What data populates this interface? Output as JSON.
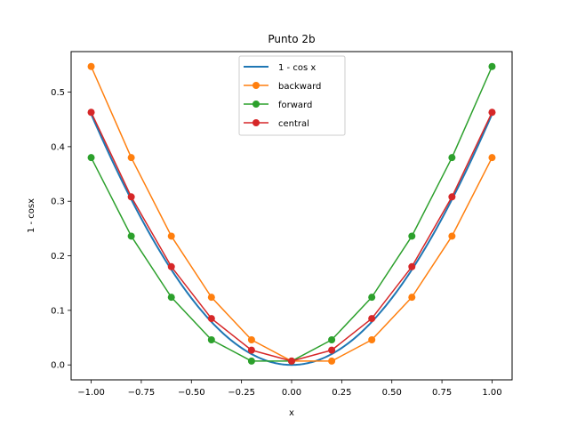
{
  "chart_data": {
    "type": "line",
    "title": "Punto 2b",
    "xlabel": "x",
    "ylabel": "1 - cosx",
    "xlim": [
      -1.1,
      1.1
    ],
    "ylim": [
      -0.0274,
      0.5743
    ],
    "xticks": [
      -1.0,
      -0.75,
      -0.5,
      -0.25,
      0.0,
      0.25,
      0.5,
      0.75,
      1.0
    ],
    "xtick_labels": [
      "−1.00",
      "−0.75",
      "−0.50",
      "−0.25",
      "0.00",
      "0.25",
      "0.50",
      "0.75",
      "1.00"
    ],
    "yticks": [
      0.0,
      0.1,
      0.2,
      0.3,
      0.4,
      0.5
    ],
    "ytick_labels": [
      "0.0",
      "0.1",
      "0.2",
      "0.3",
      "0.4",
      "0.5"
    ],
    "grid": false,
    "legend_position": "top-center",
    "x": [
      -1.0,
      -0.8,
      -0.6,
      -0.4,
      -0.2,
      0.0,
      0.2,
      0.4,
      0.6,
      0.8,
      1.0
    ],
    "series": [
      {
        "name": "1 - cos x",
        "color": "#1f77b4",
        "marker": false,
        "function": "1 - cos(x)"
      },
      {
        "name": "backward",
        "color": "#ff7f0e",
        "marker": true,
        "values": [
          0.547,
          0.38,
          0.236,
          0.124,
          0.046,
          0.007,
          0.007,
          0.046,
          0.124,
          0.236,
          0.38
        ]
      },
      {
        "name": "forward",
        "color": "#2ca02c",
        "marker": true,
        "values": [
          0.38,
          0.236,
          0.124,
          0.046,
          0.007,
          0.007,
          0.046,
          0.124,
          0.236,
          0.38,
          0.547
        ]
      },
      {
        "name": "central",
        "color": "#d62728",
        "marker": true,
        "values": [
          0.463,
          0.308,
          0.18,
          0.085,
          0.027,
          0.007,
          0.027,
          0.085,
          0.18,
          0.308,
          0.463
        ]
      }
    ]
  }
}
